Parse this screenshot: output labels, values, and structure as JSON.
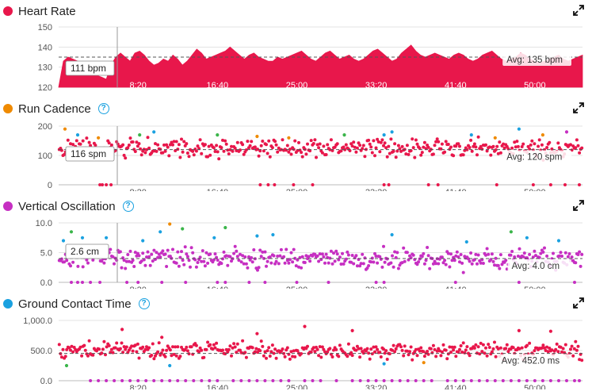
{
  "colors": {
    "heart_rate": "#e8174b",
    "cadence_orange": "#ef8a00",
    "vert_osc": "#c62fc2",
    "gct_blue": "#1aa1e0",
    "green": "#3bb54a",
    "axis_text": "#555555",
    "grid": "#e3e3e3"
  },
  "icons": {
    "help": "help-circle-icon",
    "expand": "expand-icon"
  },
  "help_glyph": "?",
  "x_ticks": [
    "8:20",
    "16:40",
    "25:00",
    "33:20",
    "41:40",
    "50:00"
  ],
  "chart_data": [
    {
      "type": "area",
      "title": "Heart Rate",
      "color": "#e8174b",
      "ylim": [
        120,
        150
      ],
      "y_ticks": [
        "150",
        "140",
        "130",
        "120"
      ],
      "x_ticks": [
        "8:20",
        "16:40",
        "25:00",
        "33:20",
        "41:40",
        "50:00"
      ],
      "xlim_seconds": [
        0,
        3300
      ],
      "avg_label": "Avg: 135 bpm",
      "avg_value": 135,
      "cursor_label": "111 bpm",
      "x": [
        0,
        30,
        60,
        90,
        120,
        150,
        180,
        210,
        240,
        270,
        300,
        330,
        360,
        390,
        420,
        450,
        480,
        510,
        540,
        570,
        600,
        630,
        660,
        690,
        720,
        750,
        780,
        810,
        840,
        870,
        900,
        930,
        960,
        990,
        1020,
        1050,
        1080,
        1110,
        1140,
        1170,
        1200,
        1230,
        1260,
        1290,
        1320,
        1350,
        1380,
        1410,
        1440,
        1470,
        1500,
        1530,
        1560,
        1590,
        1620,
        1650,
        1680,
        1710,
        1740,
        1770,
        1800,
        1830,
        1860,
        1890,
        1920,
        1950,
        1980,
        2010,
        2040,
        2070,
        2100,
        2130,
        2160,
        2190,
        2220,
        2250,
        2280,
        2310,
        2340,
        2370,
        2400,
        2430,
        2460,
        2490,
        2520,
        2550,
        2580,
        2610,
        2640,
        2670,
        2700,
        2730,
        2760,
        2790,
        2820,
        2850,
        2880,
        2910,
        2940,
        2970,
        3000,
        3030,
        3060,
        3090,
        3120,
        3150,
        3180,
        3210,
        3240,
        3270,
        3300
      ],
      "values": [
        120,
        133,
        135,
        134,
        133,
        131,
        130,
        129,
        126,
        125,
        124,
        131,
        135,
        137,
        135,
        133,
        137,
        138,
        136,
        133,
        131,
        132,
        134,
        133,
        136,
        134,
        131,
        133,
        136,
        139,
        137,
        134,
        135,
        136,
        137,
        138,
        140,
        138,
        136,
        134,
        136,
        137,
        135,
        134,
        133,
        133,
        135,
        134,
        135,
        136,
        137,
        138,
        136,
        134,
        133,
        135,
        137,
        138,
        136,
        134,
        135,
        136,
        134,
        133,
        134,
        136,
        138,
        139,
        137,
        135,
        133,
        134,
        137,
        139,
        141,
        138,
        136,
        135,
        136,
        137,
        136,
        135,
        134,
        136,
        137,
        136,
        134,
        133,
        134,
        136,
        137,
        138,
        136,
        134,
        133,
        134,
        135,
        137,
        136,
        134,
        133,
        132,
        133,
        134,
        135,
        136,
        134,
        133,
        134,
        135,
        136
      ]
    },
    {
      "type": "scatter",
      "title": "Run Cadence",
      "color": "#e8174b",
      "ylim": [
        0,
        200
      ],
      "y_ticks": [
        "200",
        "100",
        "0"
      ],
      "x_ticks": [
        "8:20",
        "16:40",
        "25:00",
        "33:20",
        "41:40",
        "50:00"
      ],
      "xlim_seconds": [
        0,
        3300
      ],
      "avg_label": "Avg: 120 spm",
      "avg_value": 120,
      "cursor_label": "116 spm",
      "series_main_range": [
        80,
        170
      ],
      "outliers_high": [
        [
          40,
          190,
          "#ef8a00"
        ],
        [
          120,
          170,
          "#1aa1e0"
        ],
        [
          250,
          160,
          "#ef8a00"
        ],
        [
          510,
          170,
          "#3bb54a"
        ],
        [
          600,
          180,
          "#1aa1e0"
        ],
        [
          1000,
          170,
          "#3bb54a"
        ],
        [
          1250,
          165,
          "#ef8a00"
        ],
        [
          1450,
          160,
          "#ef8a00"
        ],
        [
          1800,
          170,
          "#3bb54a"
        ],
        [
          2050,
          170,
          "#1aa1e0"
        ],
        [
          2100,
          180,
          "#1aa1e0"
        ],
        [
          2600,
          170,
          "#1aa1e0"
        ],
        [
          2750,
          160,
          "#ef8a00"
        ],
        [
          2900,
          190,
          "#1aa1e0"
        ],
        [
          3050,
          170,
          "#ef8a00"
        ],
        [
          3200,
          180,
          "#c62fc2"
        ]
      ],
      "zeros_x": [
        260,
        275,
        300,
        330,
        1270,
        1320,
        1360,
        1480,
        1600,
        2050,
        2080,
        2330,
        2390,
        2760,
        2990,
        3100,
        3190,
        3280
      ]
    },
    {
      "type": "scatter",
      "title": "Vertical Oscillation",
      "color": "#c62fc2",
      "ylim": [
        0,
        10
      ],
      "y_ticks": [
        "10.0",
        "5.0",
        "0.0"
      ],
      "x_ticks": [
        "8:20",
        "16:40",
        "25:00",
        "33:20",
        "41:40",
        "50:00"
      ],
      "xlim_seconds": [
        0,
        3300
      ],
      "avg_label": "Avg: 4.0 cm",
      "avg_value": 4.0,
      "cursor_label": "2.6 cm",
      "series_main_range": [
        1.5,
        6.5
      ],
      "outliers_high": [
        [
          30,
          7.0,
          "#1aa1e0"
        ],
        [
          80,
          8.5,
          "#3bb54a"
        ],
        [
          150,
          7.5,
          "#1aa1e0"
        ],
        [
          300,
          7.5,
          "#1aa1e0"
        ],
        [
          530,
          7.0,
          "#1aa1e0"
        ],
        [
          640,
          8.5,
          "#1aa1e0"
        ],
        [
          700,
          9.8,
          "#ef8a00"
        ],
        [
          780,
          9.0,
          "#3bb54a"
        ],
        [
          980,
          7.5,
          "#1aa1e0"
        ],
        [
          1050,
          9.2,
          "#3bb54a"
        ],
        [
          1250,
          7.8,
          "#1aa1e0"
        ],
        [
          1350,
          8.0,
          "#1aa1e0"
        ],
        [
          2100,
          8.0,
          "#1aa1e0"
        ],
        [
          2570,
          6.8,
          "#1aa1e0"
        ],
        [
          2850,
          8.5,
          "#3bb54a"
        ],
        [
          2950,
          7.5,
          "#1aa1e0"
        ],
        [
          3150,
          7.0,
          "#1aa1e0"
        ]
      ],
      "zeros_x": [
        80,
        120,
        150,
        200,
        260,
        430,
        500,
        650,
        800,
        1000,
        1050,
        1200,
        1300,
        1500,
        1700,
        2000,
        2050,
        2500,
        2900,
        3250
      ]
    },
    {
      "type": "scatter",
      "title": "Ground Contact Time",
      "color": "#e8174b",
      "ylim": [
        0,
        1000
      ],
      "y_ticks": [
        "1,000.0",
        "500.0",
        "0.0"
      ],
      "x_ticks": [
        "8:20",
        "16:40",
        "25:00",
        "33:20",
        "41:40",
        "50:00"
      ],
      "xlim_seconds": [
        0,
        3300
      ],
      "avg_label": "Avg: 452.0 ms",
      "avg_value": 452,
      "series_main_range": [
        300,
        700
      ],
      "outliers_high": [
        [
          400,
          850,
          "#e8174b"
        ],
        [
          650,
          720,
          "#e8174b"
        ],
        [
          1250,
          780,
          "#e8174b"
        ],
        [
          1550,
          900,
          "#e8174b"
        ],
        [
          1850,
          830,
          "#e8174b"
        ],
        [
          2900,
          830,
          "#e8174b"
        ],
        [
          3100,
          820,
          "#e8174b"
        ],
        [
          50,
          250,
          "#3bb54a"
        ],
        [
          700,
          250,
          "#1aa1e0"
        ],
        [
          2050,
          280,
          "#1aa1e0"
        ],
        [
          2300,
          300,
          "#ef8a00"
        ]
      ],
      "zeros_x": [
        200,
        250,
        300,
        350,
        400,
        450,
        500,
        550,
        600,
        650,
        700,
        750,
        800,
        850,
        900,
        950,
        1000,
        1100,
        1150,
        1200,
        1250,
        1300,
        1350,
        1400,
        1450,
        1550,
        1600,
        1650,
        1750,
        1850,
        1900,
        1950,
        2000,
        2050,
        2100,
        2150,
        2200,
        2250,
        2300,
        2350,
        2450,
        2500,
        2550,
        2600,
        2650,
        2700,
        2750,
        2800,
        2850,
        2900,
        2950,
        3000,
        3050,
        3100,
        3150,
        3200,
        3250,
        3280
      ]
    }
  ]
}
